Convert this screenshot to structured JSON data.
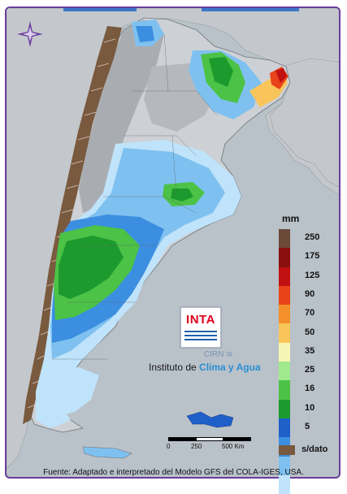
{
  "legend": {
    "title": "mm",
    "classes": [
      {
        "label": "250",
        "color": "#6b4a3a"
      },
      {
        "label": "175",
        "color": "#8a0f0f"
      },
      {
        "label": "125",
        "color": "#c01010"
      },
      {
        "label": "90",
        "color": "#e8431a"
      },
      {
        "label": "70",
        "color": "#f4902a"
      },
      {
        "label": "50",
        "color": "#f9c55a"
      },
      {
        "label": "35",
        "color": "#f5f5b5"
      },
      {
        "label": "25",
        "color": "#9eea8c"
      },
      {
        "label": "16",
        "color": "#4cc246"
      },
      {
        "label": "10",
        "color": "#1d9a2e"
      },
      {
        "label": "5",
        "color": "#1f5fc9"
      },
      {
        "label": "",
        "color": "#3c8ee0"
      },
      {
        "label": "",
        "color": "#7ec1f0"
      },
      {
        "label": "",
        "color": "#bfe3fa"
      }
    ],
    "no_data_label": "s/dato",
    "no_data_color": "#7a5a3f"
  },
  "logo": {
    "text": "INTA",
    "subtitle": "CIRN",
    "institute_prefix": "Instituto de ",
    "institute_highlight": "Clima y Agua"
  },
  "scale": {
    "labels": [
      "0",
      "250",
      "500 Km"
    ]
  },
  "source": "Fuente: Adaptado e interpretado del Modelo GFS del COLA-IGES, USA.",
  "colors": {
    "frame": "#6a3d9a",
    "land_base": "#c4c8cc",
    "ocean": "#b9c1c9",
    "relief": "#9a9ea4",
    "no_data": "#7a5a3f",
    "compass": "#6a3d9a"
  },
  "icons": [
    "compass-rose-icon",
    "inta-logo-icon",
    "clima-agua-waves-icon"
  ]
}
